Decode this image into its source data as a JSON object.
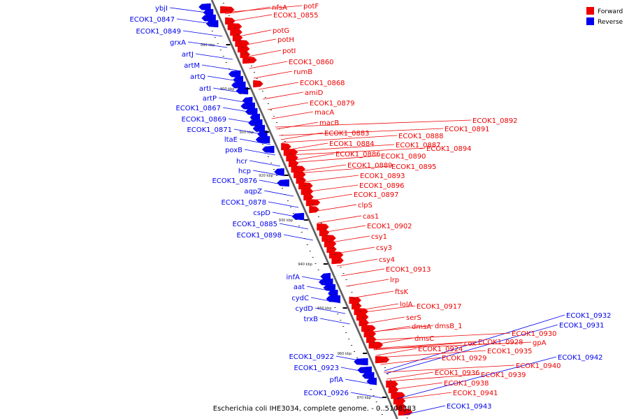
{
  "legend": [
    {
      "label": "Forward",
      "color": "#ee0000"
    },
    {
      "label": "Reverse",
      "color": "#0000ee"
    }
  ],
  "caption": "Escherichia coli IHE3034, complete genome. - 0..5108383",
  "ticks": [
    "890 kbp",
    "900 kbp",
    "910 kbp",
    "920 kbp",
    "930 kbp",
    "940 kbp",
    "950 kbp",
    "960 kbp",
    "970 kbp"
  ],
  "reverse_labels": [
    "ybjI",
    "ECOK1_0847",
    "ECOK1_0849",
    "grxA",
    "artJ",
    "artM",
    "artQ",
    "artI",
    "artP",
    "ECOK1_0867",
    "ECOK1_0869",
    "ECOK1_0871",
    "ltaE",
    "poxB",
    "hcr",
    "hcp",
    "ECOK1_0876",
    "aqpZ",
    "ECOK1_0878",
    "cspD",
    "ECOK1_0885",
    "ECOK1_0898",
    "infA",
    "aat",
    "cydC",
    "cydD",
    "trxB",
    "ECOK1_0922",
    "ECOK1_0923",
    "pflA",
    "ECOK1_0926",
    "ECOK1_0932",
    "ECOK1_0931",
    "ECOK1_0942",
    "ECOK1_0943"
  ],
  "forward_labels": [
    "nfsA",
    "potF",
    "ECOK1_0855",
    "potG",
    "potH",
    "potI",
    "ECOK1_0860",
    "rumB",
    "ECOK1_0868",
    "amiD",
    "ECOK1_0879",
    "macA",
    "macB",
    "ECOK1_0892",
    "ECOK1_0891",
    "ECOK1_0888",
    "ECOK1_0883",
    "ECOK1_0887",
    "ECOK1_0894",
    "ECOK1_0884",
    "ECOK1_0886",
    "ECOK1_0890",
    "ECOK1_0889",
    "ECOK1_0895",
    "ECOK1_0893",
    "ECOK1_0896",
    "ECOK1_0897",
    "clpS",
    "cas1",
    "ECOK1_0902",
    "csy1",
    "csy3",
    "csy4",
    "ECOK1_0913",
    "lrp",
    "ftsK",
    "lolA",
    "ECOK1_0917",
    "serS",
    "dmsA",
    "dmsB_1",
    "dmsC",
    "ECOK1_0930",
    "ECOK1_0928",
    "cox",
    "gpA",
    "ECOK1_0924",
    "ECOK1_0935",
    "ECOK1_0929",
    "ECOK1_0940",
    "ECOK1_0936",
    "ECOK1_0939",
    "ECOK1_0938",
    "ECOK1_0941"
  ]
}
